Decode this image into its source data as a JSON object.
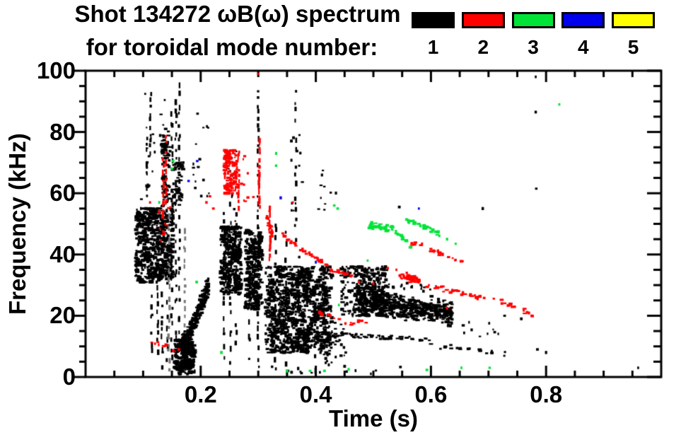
{
  "title": {
    "line1": "Shot 134272 ωB(ω) spectrum",
    "line2": "for toroidal mode number:"
  },
  "legend": {
    "items": [
      {
        "label": "1",
        "color": "#000000"
      },
      {
        "label": "2",
        "color": "#ff0000"
      },
      {
        "label": "3",
        "color": "#00e438"
      },
      {
        "label": "4",
        "color": "#0000ee"
      },
      {
        "label": "5",
        "color": "#ffff00"
      }
    ]
  },
  "chart_data": {
    "type": "scatter",
    "title": "Shot 134272 ωB(ω) spectrum for toroidal mode number: 1 2 3 4 5",
    "xlabel": "Time (s)",
    "ylabel": "Frequency (kHz)",
    "xlim": [
      0,
      1.0
    ],
    "ylim": [
      0,
      100
    ],
    "grid": false,
    "xticks": {
      "major": [
        0.2,
        0.4,
        0.6,
        0.8
      ],
      "labels": [
        "0.2",
        "0.4",
        "0.6",
        "0.8"
      ],
      "minor_step": 0.05
    },
    "yticks": {
      "major": [
        0,
        20,
        40,
        60,
        80,
        100
      ],
      "labels": [
        "0",
        "20",
        "40",
        "60",
        "80",
        "100"
      ],
      "minor_step": 5
    },
    "modes": {
      "1": "#000000",
      "2": "#ff0000",
      "3": "#00e438",
      "4": "#0000ee",
      "5": "#ffff00"
    },
    "units": {
      "t": "s",
      "f": "kHz"
    },
    "features": [
      {
        "mode": 1,
        "kind": "blob",
        "t": [
          0.088,
          0.152
        ],
        "f": [
          31,
          55
        ],
        "n": 650
      },
      {
        "mode": 1,
        "kind": "scatter",
        "t": [
          0.09,
          0.138
        ],
        "f": [
          56,
          95
        ],
        "n": 24
      },
      {
        "mode": 1,
        "kind": "vstreak",
        "t": 0.107,
        "f": [
          58,
          80
        ],
        "n": 10
      },
      {
        "mode": 1,
        "kind": "vstreak",
        "t": 0.113,
        "f": [
          72,
          93
        ],
        "n": 10
      },
      {
        "mode": 1,
        "kind": "blob",
        "t": [
          0.133,
          0.147
        ],
        "f": [
          55,
          82
        ],
        "n": 80
      },
      {
        "mode": 1,
        "kind": "vstreak",
        "t": 0.115,
        "f": [
          5,
          30
        ],
        "n": 10
      },
      {
        "mode": 1,
        "kind": "vstreak",
        "t": 0.125,
        "f": [
          8,
          30
        ],
        "n": 9
      },
      {
        "mode": 1,
        "kind": "vstreak",
        "t": 0.133,
        "f": [
          3,
          30
        ],
        "n": 10
      },
      {
        "mode": 1,
        "kind": "vstreak",
        "t": 0.142,
        "f": [
          2,
          55
        ],
        "n": 16
      },
      {
        "mode": 1,
        "kind": "vstreak",
        "t": 0.145,
        "f": [
          2,
          55
        ],
        "n": 20,
        "gray": true
      },
      {
        "mode": 1,
        "kind": "vstreak",
        "t": 0.15,
        "f": [
          5,
          88
        ],
        "n": 30
      },
      {
        "mode": 1,
        "kind": "vstreak",
        "t": 0.157,
        "f": [
          3,
          92
        ],
        "n": 32
      },
      {
        "mode": 1,
        "kind": "vstreak",
        "t": 0.163,
        "f": [
          10,
          97
        ],
        "n": 28
      },
      {
        "mode": 1,
        "kind": "vstreak",
        "t": 0.172,
        "f": [
          2,
          50
        ],
        "n": 18,
        "gray": true
      },
      {
        "mode": 1,
        "kind": "blob",
        "t": [
          0.152,
          0.17
        ],
        "f": [
          55,
          70
        ],
        "n": 50
      },
      {
        "mode": 1,
        "kind": "blob",
        "t": [
          0.155,
          0.19
        ],
        "f": [
          1,
          12
        ],
        "n": 300
      },
      {
        "mode": 1,
        "kind": "band",
        "pts": [
          [
            0.168,
            10
          ],
          [
            0.19,
            18
          ],
          [
            0.214,
            30
          ]
        ],
        "th": 8,
        "n": 260
      },
      {
        "mode": 1,
        "kind": "scatter",
        "t": [
          0.186,
          0.216
        ],
        "f": [
          55,
          90
        ],
        "n": 16
      },
      {
        "mode": 1,
        "kind": "blob",
        "t": [
          0.235,
          0.27
        ],
        "f": [
          27,
          49
        ],
        "n": 360
      },
      {
        "mode": 1,
        "kind": "vstreak",
        "t": 0.241,
        "f": [
          5,
          55
        ],
        "n": 15
      },
      {
        "mode": 1,
        "kind": "vstreak",
        "t": 0.252,
        "f": [
          4,
          57
        ],
        "n": 15
      },
      {
        "mode": 1,
        "kind": "vstreak",
        "t": 0.262,
        "f": [
          8,
          55
        ],
        "n": 13
      },
      {
        "mode": 1,
        "kind": "scatter",
        "t": [
          0.243,
          0.263
        ],
        "f": [
          50,
          78
        ],
        "n": 10
      },
      {
        "mode": 1,
        "kind": "blob",
        "t": [
          0.278,
          0.307
        ],
        "f": [
          22,
          48
        ],
        "n": 320
      },
      {
        "mode": 1,
        "kind": "vstreak",
        "t": 0.285,
        "f": [
          5,
          55
        ],
        "n": 13
      },
      {
        "mode": 1,
        "kind": "vstreak",
        "t": 0.3,
        "f": [
          3,
          95
        ],
        "n": 40
      },
      {
        "mode": 1,
        "kind": "blob",
        "t": [
          0.313,
          0.428
        ],
        "f": [
          8,
          36
        ],
        "n": 1050
      },
      {
        "mode": 1,
        "kind": "vstreak",
        "t": 0.33,
        "f": [
          2,
          52
        ],
        "n": 17
      },
      {
        "mode": 1,
        "kind": "vstreak",
        "t": 0.348,
        "f": [
          3,
          48
        ],
        "n": 15
      },
      {
        "mode": 1,
        "kind": "vstreak",
        "t": 0.365,
        "f": [
          40,
          97
        ],
        "n": 20
      },
      {
        "mode": 1,
        "kind": "vstreak",
        "t": 0.37,
        "f": [
          2,
          40
        ],
        "n": 13
      },
      {
        "mode": 1,
        "kind": "vstreak",
        "t": 0.398,
        "f": [
          2,
          30
        ],
        "n": 12
      },
      {
        "mode": 1,
        "kind": "scatter",
        "t": [
          0.355,
          0.378
        ],
        "f": [
          50,
          80
        ],
        "n": 12
      },
      {
        "mode": 1,
        "kind": "scatter",
        "t": [
          0.4,
          0.435
        ],
        "f": [
          54,
          68
        ],
        "n": 10
      },
      {
        "mode": 1,
        "kind": "scatter",
        "t": [
          0.41,
          0.452
        ],
        "f": [
          3,
          18
        ],
        "n": 40
      },
      {
        "mode": 1,
        "kind": "blob",
        "t": [
          0.445,
          0.522
        ],
        "f": [
          20,
          36
        ],
        "n": 320
      },
      {
        "mode": 1,
        "kind": "band",
        "pts": [
          [
            0.47,
            27
          ],
          [
            0.52,
            24
          ],
          [
            0.56,
            22.5
          ],
          [
            0.6,
            22
          ],
          [
            0.637,
            20.5
          ]
        ],
        "th": 9,
        "n": 560
      },
      {
        "mode": 1,
        "kind": "scatter",
        "t": [
          0.5,
          0.6
        ],
        "f": [
          28,
          31
        ],
        "n": 20
      },
      {
        "mode": 1,
        "kind": "band",
        "pts": [
          [
            0.41,
            14.5
          ],
          [
            0.5,
            13
          ],
          [
            0.6,
            12.5
          ]
        ],
        "th": 2,
        "n": 55
      },
      {
        "mode": 1,
        "kind": "band",
        "pts": [
          [
            0.6,
            10.5
          ],
          [
            0.73,
            7.5
          ]
        ],
        "th": 2,
        "n": 20
      },
      {
        "mode": 1,
        "kind": "scatter",
        "t": [
          0.64,
          0.745
        ],
        "f": [
          13,
          18
        ],
        "n": 10
      },
      {
        "mode": 1,
        "kind": "scatter",
        "t": [
          0.3,
          0.56
        ],
        "f": [
          1,
          4
        ],
        "n": 12
      },
      {
        "mode": 1,
        "kind": "dots",
        "pts": [
          [
            0.782,
            98
          ],
          [
            0.782,
            86.5
          ],
          [
            0.783,
            61.5
          ],
          [
            0.69,
            55
          ],
          [
            0.545,
            55.5
          ],
          [
            0.96,
            3
          ],
          [
            0.728,
            20
          ],
          [
            0.757,
            19
          ],
          [
            0.785,
            9
          ],
          [
            0.8,
            8
          ]
        ]
      },
      {
        "mode": 2,
        "kind": "vstreak",
        "t": 0.135,
        "f": [
          52,
          72
        ],
        "n": 12
      },
      {
        "mode": 2,
        "kind": "vstreak",
        "t": 0.14,
        "f": [
          55,
          80
        ],
        "n": 12
      },
      {
        "mode": 2,
        "kind": "scatter",
        "t": [
          0.127,
          0.148
        ],
        "f": [
          44,
          56
        ],
        "n": 12
      },
      {
        "mode": 2,
        "kind": "scatter",
        "t": [
          0.115,
          0.155
        ],
        "f": [
          8,
          12
        ],
        "n": 9
      },
      {
        "mode": 2,
        "kind": "blob",
        "t": [
          0.242,
          0.263
        ],
        "f": [
          60,
          74
        ],
        "n": 120
      },
      {
        "mode": 2,
        "kind": "vstreak",
        "t": 0.266,
        "f": [
          55,
          75
        ],
        "n": 12
      },
      {
        "mode": 2,
        "kind": "scatter",
        "t": [
          0.268,
          0.292
        ],
        "f": [
          55,
          73
        ],
        "n": 9
      },
      {
        "mode": 2,
        "kind": "vstreak",
        "t": 0.302,
        "f": [
          55,
          78
        ],
        "n": 20
      },
      {
        "mode": 2,
        "kind": "vstreak",
        "t": 0.32,
        "f": [
          38,
          56
        ],
        "n": 15
      },
      {
        "mode": 2,
        "kind": "band",
        "pts": [
          [
            0.315,
            52
          ],
          [
            0.325,
            46
          ]
        ],
        "th": 4,
        "n": 24
      },
      {
        "mode": 2,
        "kind": "band",
        "pts": [
          [
            0.34,
            47
          ],
          [
            0.38,
            41
          ],
          [
            0.43,
            35
          ],
          [
            0.468,
            32.5
          ]
        ],
        "th": 2,
        "n": 45
      },
      {
        "mode": 2,
        "kind": "band",
        "pts": [
          [
            0.405,
            21
          ],
          [
            0.45,
            17.5
          ],
          [
            0.49,
            18
          ]
        ],
        "th": 2,
        "n": 18
      },
      {
        "mode": 2,
        "kind": "band",
        "pts": [
          [
            0.545,
            33
          ],
          [
            0.58,
            31.5
          ]
        ],
        "th": 2.5,
        "n": 55
      },
      {
        "mode": 2,
        "kind": "band",
        "pts": [
          [
            0.582,
            30.5
          ],
          [
            0.65,
            27.5
          ],
          [
            0.72,
            24.5
          ],
          [
            0.778,
            20.5
          ]
        ],
        "th": 2,
        "n": 50
      },
      {
        "mode": 2,
        "kind": "band",
        "pts": [
          [
            0.563,
            44
          ],
          [
            0.61,
            41
          ],
          [
            0.656,
            37.5
          ]
        ],
        "th": 2,
        "n": 24
      },
      {
        "mode": 2,
        "kind": "dots",
        "pts": [
          [
            0.112,
            57
          ],
          [
            0.21,
            57
          ],
          [
            0.216,
            59
          ],
          [
            0.222,
            55
          ],
          [
            0.162,
            9
          ],
          [
            0.3,
            99
          ],
          [
            0.36,
            57
          ],
          [
            0.525,
            35.5
          ],
          [
            0.54,
            35
          ],
          [
            0.558,
            34
          ],
          [
            0.628,
            22.5
          ],
          [
            0.475,
            31
          ],
          [
            0.5,
            30.5
          ]
        ]
      },
      {
        "mode": 3,
        "kind": "band",
        "pts": [
          [
            0.493,
            49.5
          ],
          [
            0.535,
            48.5
          ]
        ],
        "th": 2.5,
        "n": 50
      },
      {
        "mode": 3,
        "kind": "band",
        "pts": [
          [
            0.538,
            47.5
          ],
          [
            0.566,
            42.5
          ]
        ],
        "th": 2,
        "n": 13
      },
      {
        "mode": 3,
        "kind": "band",
        "pts": [
          [
            0.556,
            51
          ],
          [
            0.59,
            49
          ],
          [
            0.616,
            46.5
          ]
        ],
        "th": 2,
        "n": 28
      },
      {
        "mode": 3,
        "kind": "dots",
        "pts": [
          [
            0.128,
            57
          ],
          [
            0.15,
            68
          ],
          [
            0.152,
            70.5
          ],
          [
            0.193,
            31
          ],
          [
            0.236,
            8
          ],
          [
            0.331,
            69
          ],
          [
            0.331,
            73
          ],
          [
            0.432,
            56
          ],
          [
            0.438,
            55
          ],
          [
            0.44,
            23.5
          ],
          [
            0.49,
            38
          ],
          [
            0.628,
            45
          ],
          [
            0.643,
            43.5
          ],
          [
            0.823,
            89
          ],
          [
            0.35,
            2
          ],
          [
            0.39,
            2
          ],
          [
            0.415,
            2
          ],
          [
            0.457,
            2.5
          ],
          [
            0.593,
            2.3
          ],
          [
            0.653,
            3
          ],
          [
            0.702,
            3
          ]
        ]
      },
      {
        "mode": 4,
        "kind": "dots",
        "pts": [
          [
            0.179,
            64
          ],
          [
            0.194,
            70.5
          ],
          [
            0.339,
            58.5
          ],
          [
            0.4,
            37.5
          ],
          [
            0.579,
            55
          ]
        ]
      }
    ]
  }
}
